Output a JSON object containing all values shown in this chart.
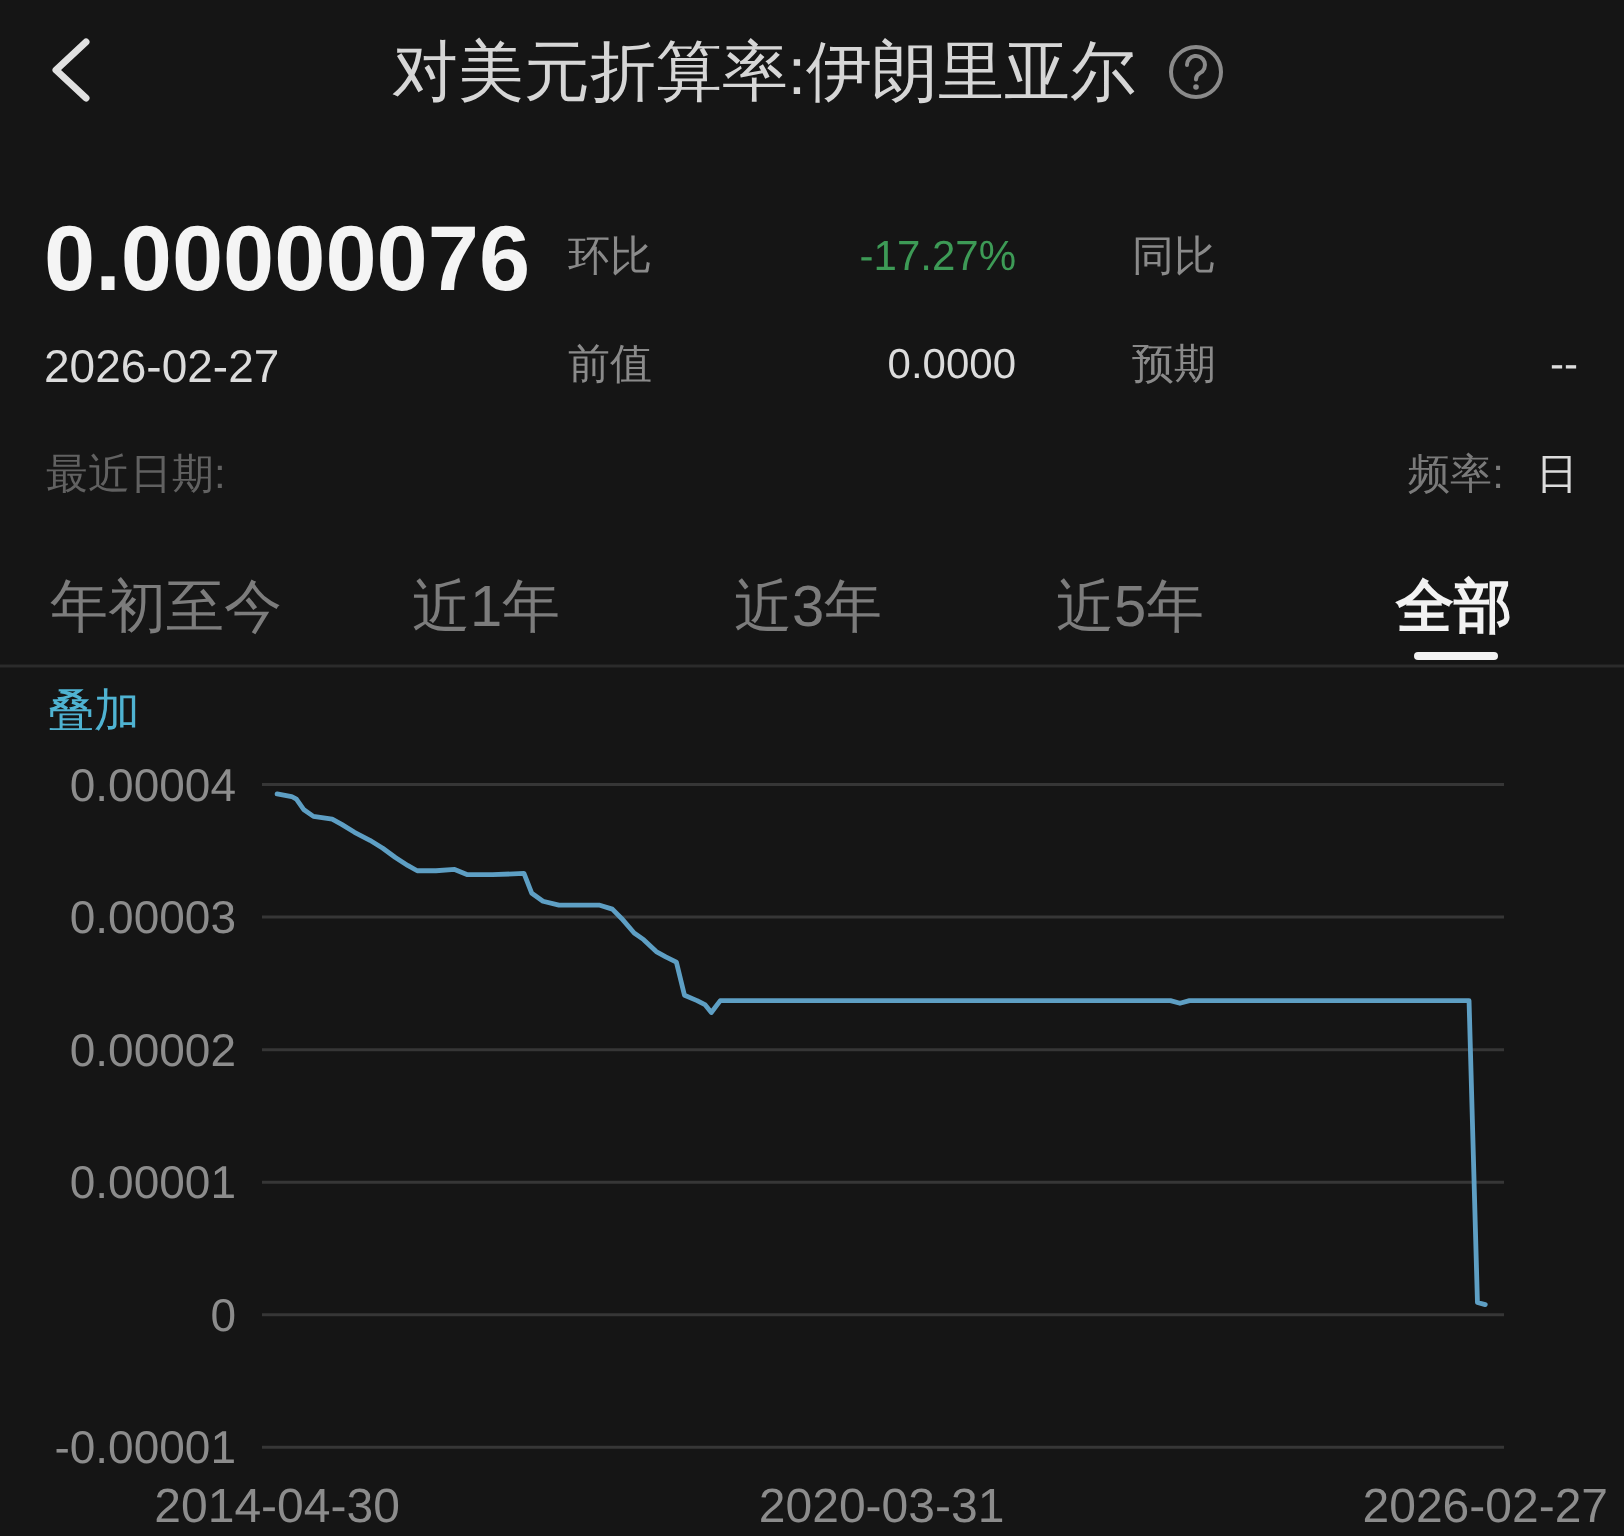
{
  "chart_data": {
    "type": "line",
    "title": "对美元折算率:伊朗里亚尔",
    "annotations": [
      "0.00000076",
      "2026-02-27",
      "环比",
      "-17.27%",
      "同比",
      "前值",
      "0.0000",
      "预期",
      "--",
      "最近日期:",
      "频率:",
      "日",
      "年初至今",
      "近1年",
      "近3年",
      "近5年",
      "全部",
      "叠加"
    ],
    "x": [
      "2014-04-30",
      "2014-06-21",
      "2014-07-08",
      "2014-08-04",
      "2014-09-07",
      "2014-11-13",
      "2014-12-17",
      "2015-02-01",
      "2015-03-28",
      "2015-05-13",
      "2015-06-27",
      "2015-08-10",
      "2015-09-13",
      "2015-11-19",
      "2016-01-25",
      "2016-03-11",
      "2016-06-09",
      "2016-09-29",
      "2016-10-27",
      "2016-12-06",
      "2017-02-01",
      "2017-06-27",
      "2017-08-11",
      "2017-09-13",
      "2017-10-28",
      "2017-12-01",
      "2018-01-15",
      "2018-02-18",
      "2018-03-28",
      "2018-04-26",
      "2018-06-10",
      "2018-07-08",
      "2018-07-31",
      "2018-09-01",
      "2023-01-28",
      "2023-03-03",
      "2023-04-06",
      "2025-12-31",
      "2026-01-30",
      "2026-02-27"
    ],
    "values": [
      3.93e-05,
      3.91e-05,
      3.89e-05,
      3.81e-05,
      3.76e-05,
      3.74e-05,
      3.7e-05,
      3.64e-05,
      3.58e-05,
      3.52e-05,
      3.45e-05,
      3.39e-05,
      3.35e-05,
      3.35e-05,
      3.36e-05,
      3.32e-05,
      3.32e-05,
      3.33e-05,
      3.18e-05,
      3.12e-05,
      3.09e-05,
      3.09e-05,
      3.06e-05,
      2.99e-05,
      2.88e-05,
      2.83e-05,
      2.74e-05,
      2.7e-05,
      2.66e-05,
      2.41e-05,
      2.37e-05,
      2.34e-05,
      2.28e-05,
      2.37e-05,
      2.37e-05,
      2.35e-05,
      2.37e-05,
      2.37e-05,
      9.2e-07,
      7.6e-07
    ],
    "color": "#5e9fc4",
    "line_style": "solid",
    "xlim": [
      "2014-03-07",
      "2026-05-05"
    ],
    "xticks": [
      "2014-04-30",
      "2020-03-31",
      "2026-02-27"
    ],
    "ylim": [
      -1e-05,
      4e-05
    ],
    "yticks": [
      {
        "value": -1e-05,
        "label": "-0.00001"
      },
      0,
      {
        "value": 1e-05,
        "label": "0.00001"
      },
      {
        "value": 2e-05,
        "label": "0.00002"
      },
      {
        "value": 3e-05,
        "label": "0.00003"
      },
      {
        "value": 4e-05,
        "label": "0.00004"
      }
    ],
    "grid": "y"
  }
}
